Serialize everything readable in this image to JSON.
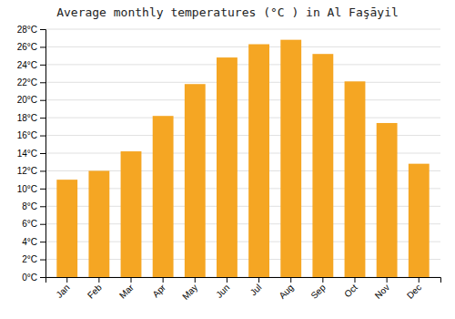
{
  "chart_data": {
    "type": "bar",
    "title": "Average monthly temperatures (°C ) in Al Faşāyil",
    "categories": [
      "Jan",
      "Feb",
      "Mar",
      "Apr",
      "May",
      "Jun",
      "Jul",
      "Aug",
      "Sep",
      "Oct",
      "Nov",
      "Dec"
    ],
    "values": [
      11,
      12,
      14.2,
      18.2,
      21.8,
      24.8,
      26.3,
      26.8,
      25.2,
      22.1,
      17.4,
      12.8
    ],
    "color": "#F5A623",
    "ylim": [
      0,
      28
    ],
    "yticks": [
      {
        "value": 0,
        "label": "0°C"
      },
      {
        "value": 2,
        "label": "2°C"
      },
      {
        "value": 4,
        "label": "4°C"
      },
      {
        "value": 6,
        "label": "6°C"
      },
      {
        "value": 8,
        "label": "8°C"
      },
      {
        "value": 10,
        "label": "10°C"
      },
      {
        "value": 12,
        "label": "12°C"
      },
      {
        "value": 14,
        "label": "14°C"
      },
      {
        "value": 16,
        "label": "16°C"
      },
      {
        "value": 18,
        "label": "18°C"
      },
      {
        "value": 20,
        "label": "20°C"
      },
      {
        "value": 22,
        "label": "22°C"
      },
      {
        "value": 24,
        "label": "24°C"
      },
      {
        "value": 26,
        "label": "26°C"
      },
      {
        "value": 28,
        "label": "28°C"
      }
    ],
    "grid": true
  }
}
